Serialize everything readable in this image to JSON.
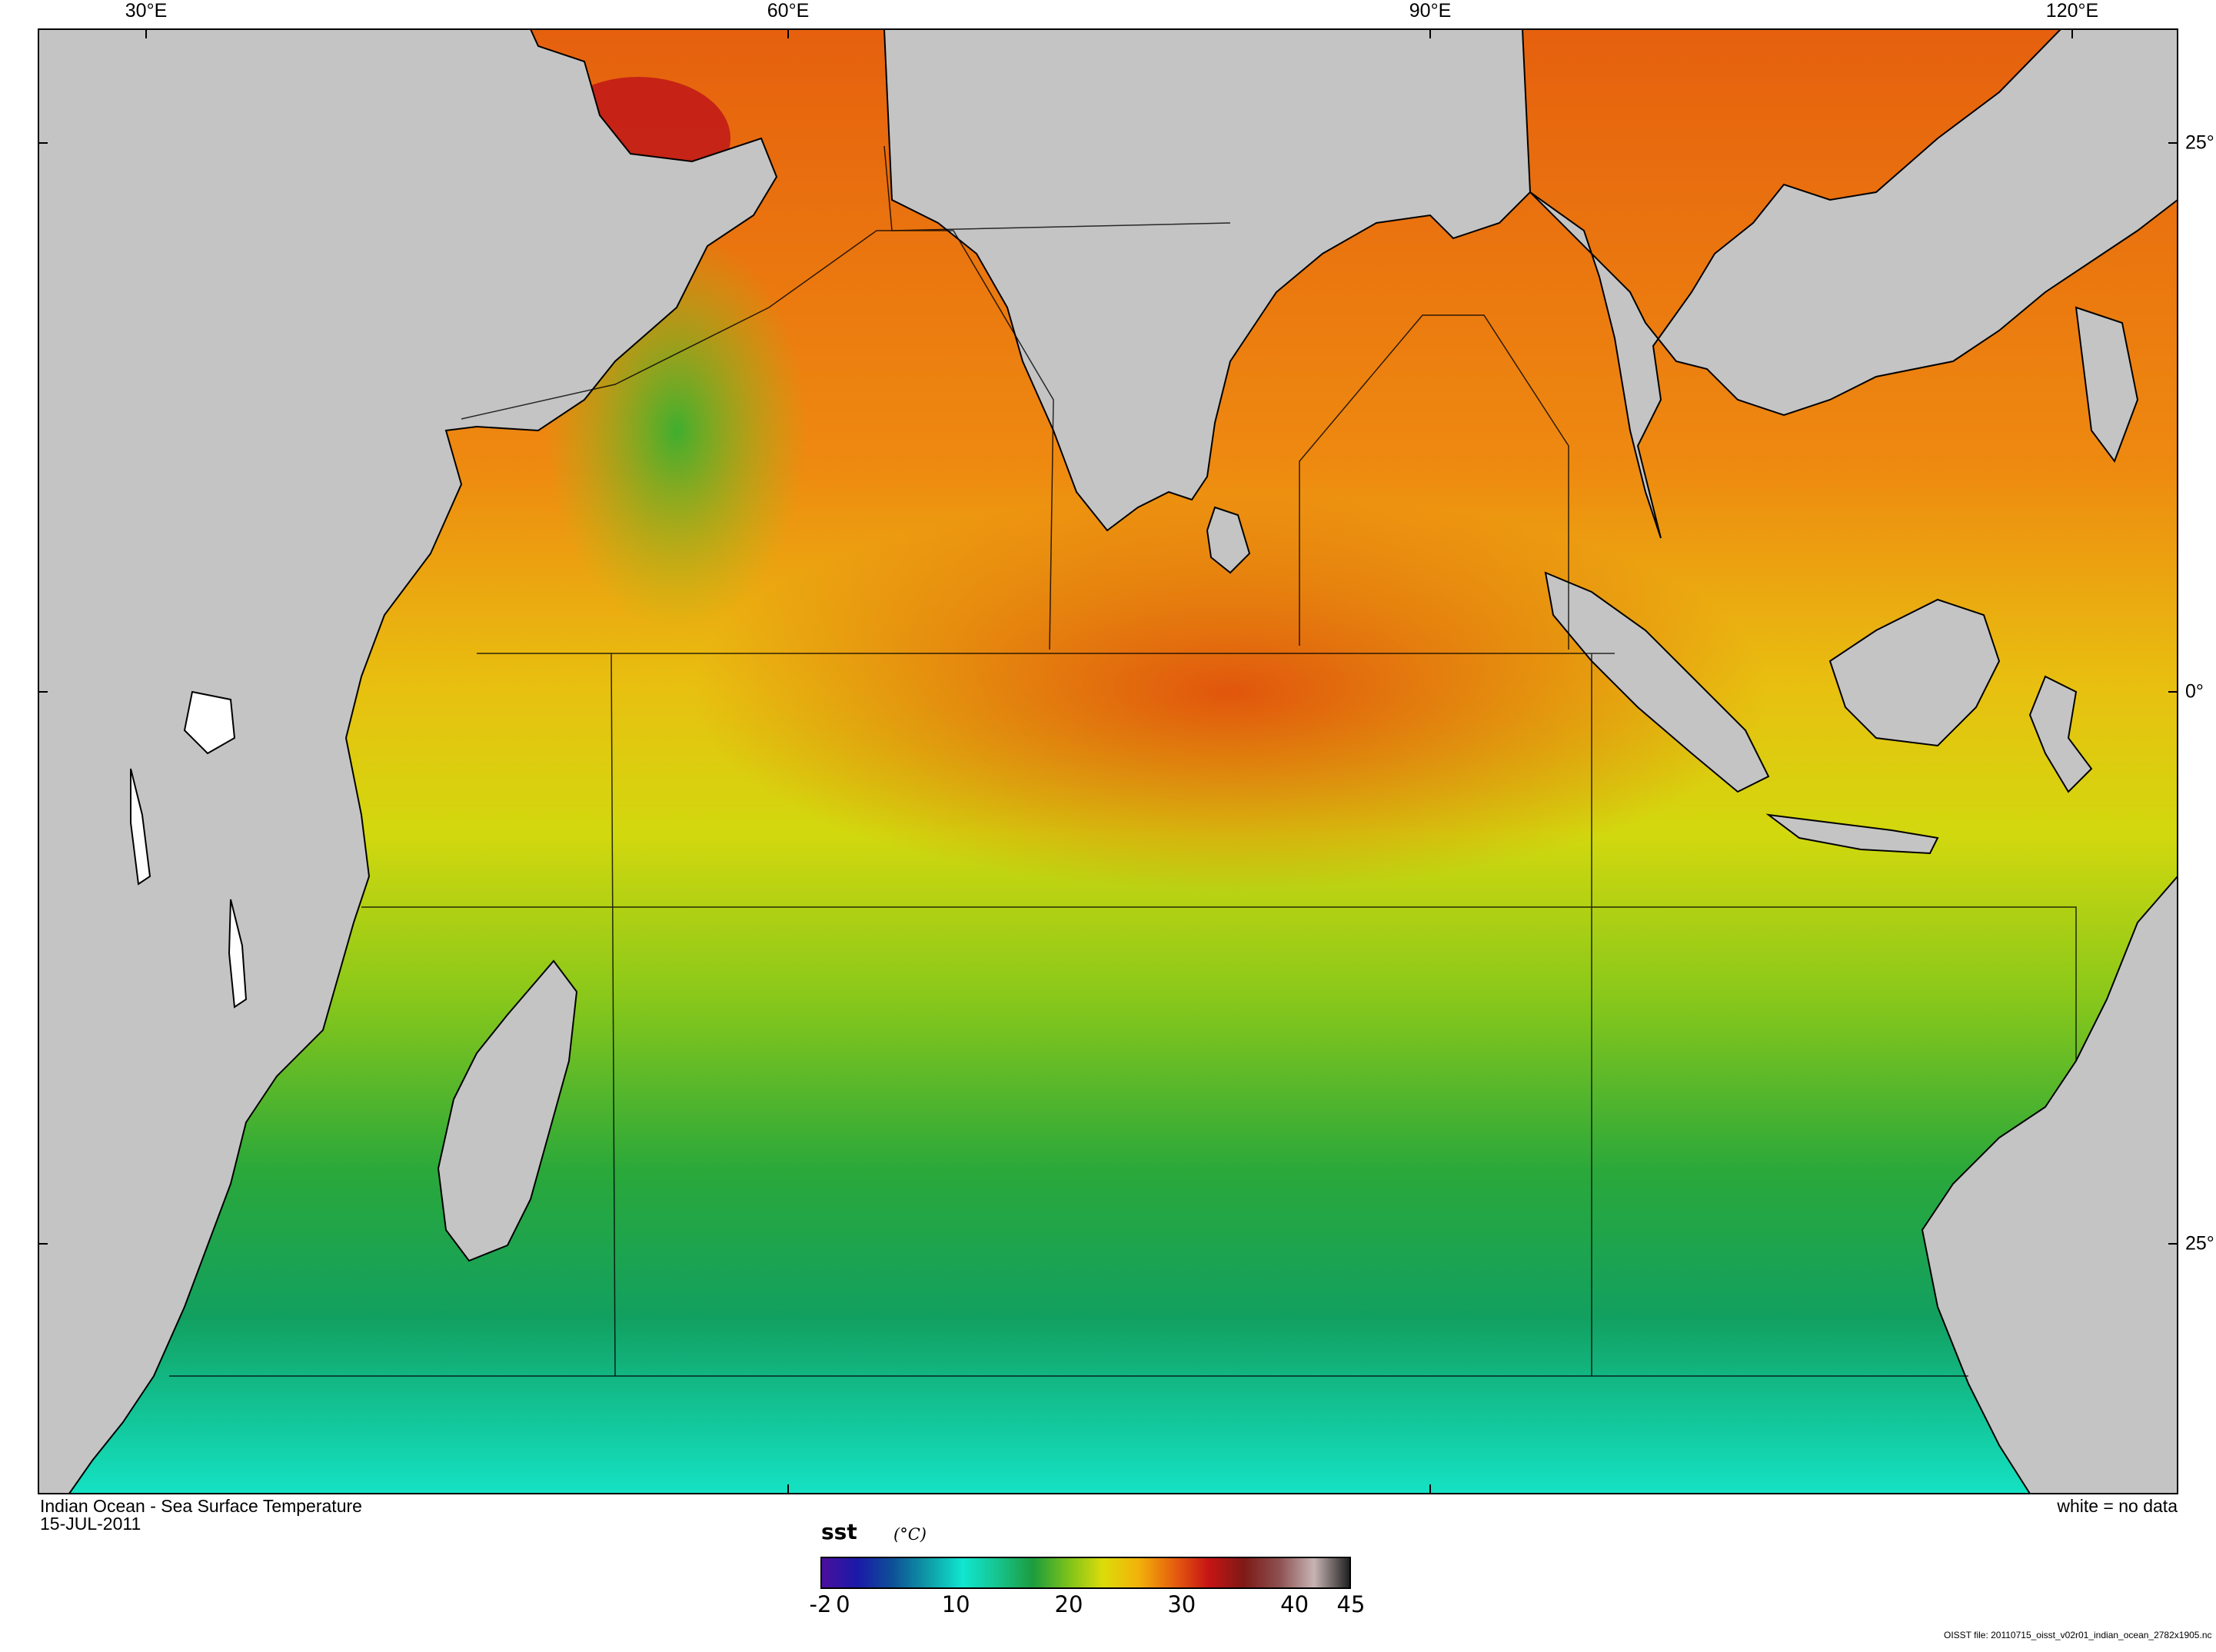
{
  "map": {
    "title": "Indian Ocean - Sea Surface Temperature",
    "date": "15-JUL-2011",
    "no_data_note": "white = no data",
    "file_label": "OISST file: 20110715_oisst_v02r01_indian_ocean_2782x1905.nc",
    "lon_labels": [
      "30°E",
      "60°E",
      "90°E",
      "120°E"
    ],
    "lat_labels": [
      "25°",
      "0°",
      "25°"
    ],
    "land_color": "#c4c4c4",
    "no_data_color": "#ffffff",
    "colorbar": {
      "variable": "sst",
      "units": "(°C)",
      "range": [
        -2,
        45
      ],
      "tick_labels": [
        "-2",
        "0",
        "10",
        "20",
        "30",
        "40",
        "45"
      ],
      "colors": [
        "#4b0f9e",
        "#1a1aa8",
        "#0e4f97",
        "#0e9aa6",
        "#10e6d0",
        "#16c48e",
        "#1c9c3e",
        "#7cc21b",
        "#dcdc0a",
        "#f2b20a",
        "#e6600e",
        "#c61414",
        "#7e1a16",
        "#8c5050",
        "#c8b4b4",
        "#202020"
      ]
    }
  }
}
